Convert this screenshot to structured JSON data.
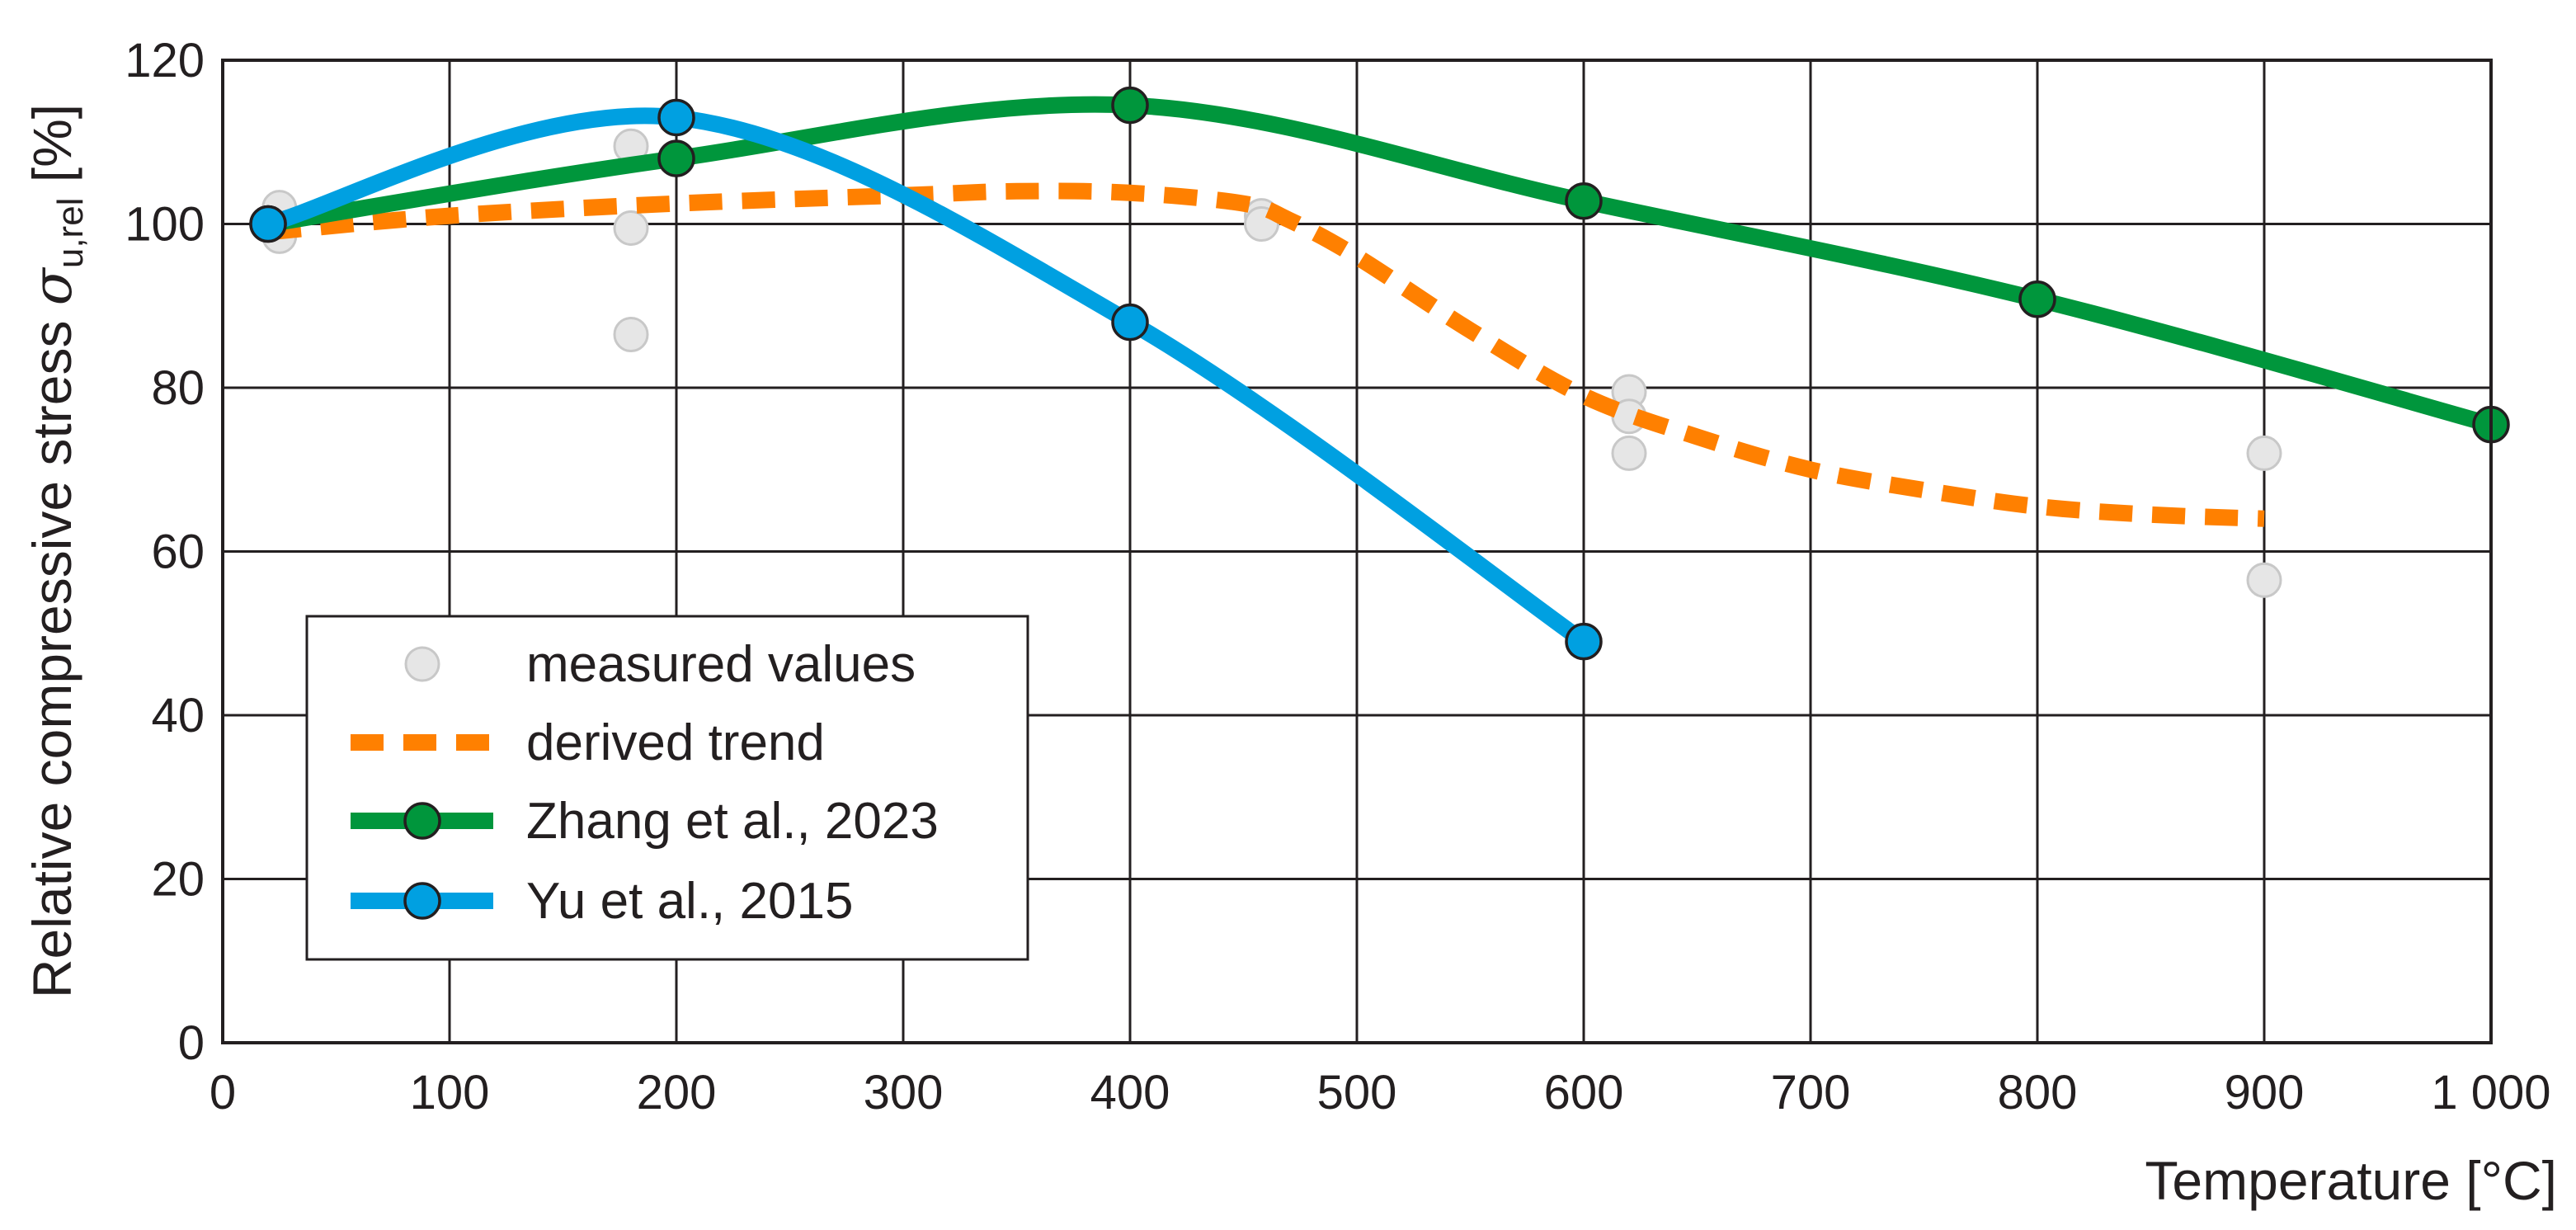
{
  "chart_data": {
    "type": "line",
    "title": "",
    "xlabel": "Temperature [°C]",
    "ylabel": {
      "main": "Relative compressive stress ",
      "symbol": "σ",
      "subscript": "u,rel",
      "unit": " [%]"
    },
    "xlim": [
      0,
      1000
    ],
    "ylim": [
      0,
      120
    ],
    "x_ticks": [
      0,
      100,
      200,
      300,
      400,
      500,
      600,
      700,
      800,
      900,
      1000
    ],
    "x_tick_labels": [
      "0",
      "100",
      "200",
      "300",
      "400",
      "500",
      "600",
      "700",
      "800",
      "900",
      "1 000"
    ],
    "y_ticks": [
      0,
      20,
      40,
      60,
      80,
      100,
      120
    ],
    "y_tick_labels": [
      "0",
      "20",
      "40",
      "60",
      "80",
      "100",
      "120"
    ],
    "grid": true,
    "legend_position": "bottom-left",
    "series": [
      {
        "name": "measured values",
        "kind": "scatter",
        "color": "#e6e6e6",
        "edge_color": "#c8c8c8",
        "points": [
          [
            25,
            102
          ],
          [
            25,
            98.5
          ],
          [
            180,
            109.5
          ],
          [
            180,
            99.5
          ],
          [
            180,
            86.5
          ],
          [
            458,
            101
          ],
          [
            458,
            100
          ],
          [
            620,
            79.5
          ],
          [
            620,
            76.5
          ],
          [
            620,
            72
          ],
          [
            900,
            72
          ],
          [
            900,
            56.5
          ]
        ]
      },
      {
        "name": "derived trend",
        "kind": "dashed-line",
        "color": "#ff8000",
        "points": [
          [
            20,
            99
          ],
          [
            100,
            101
          ],
          [
            200,
            102.5
          ],
          [
            300,
            103.5
          ],
          [
            350,
            104
          ],
          [
            400,
            103.8
          ],
          [
            450,
            102.5
          ],
          [
            470,
            100.5
          ],
          [
            500,
            96
          ],
          [
            550,
            87
          ],
          [
            600,
            79
          ],
          [
            650,
            74
          ],
          [
            700,
            70
          ],
          [
            750,
            67.5
          ],
          [
            800,
            65.5
          ],
          [
            850,
            64.5
          ],
          [
            900,
            64
          ]
        ]
      },
      {
        "name": "Zhang et al., 2023",
        "kind": "line-markers",
        "color": "#00963c",
        "points": [
          [
            20,
            100
          ],
          [
            200,
            108
          ],
          [
            400,
            114.5
          ],
          [
            600,
            102.8
          ],
          [
            800,
            90.8
          ],
          [
            1000,
            75.5
          ]
        ]
      },
      {
        "name": "Yu et al., 2015",
        "kind": "line-markers",
        "color": "#00a0e1",
        "points": [
          [
            20,
            100
          ],
          [
            200,
            113
          ],
          [
            400,
            88
          ],
          [
            600,
            49
          ]
        ]
      }
    ]
  }
}
